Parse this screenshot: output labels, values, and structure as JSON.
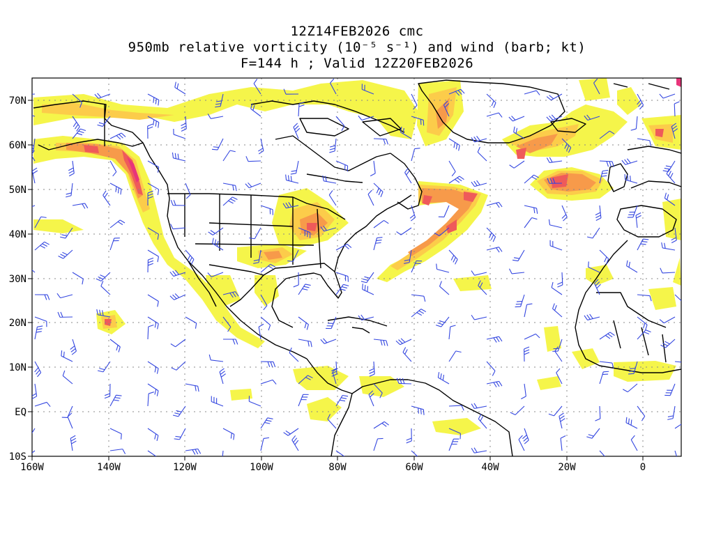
{
  "title": {
    "line1": "12Z14FEB2026 cmc",
    "line2": "950mb relative vorticity (10⁻⁵ s⁻¹) and wind (barb; kt)",
    "line3": "F=144 h ; Valid 12Z20FEB2026"
  },
  "axes": {
    "lat_labels": [
      "70N",
      "60N",
      "50N",
      "40N",
      "30N",
      "20N",
      "10N",
      "EQ",
      "10S"
    ],
    "lon_labels": [
      "160W",
      "140W",
      "120W",
      "100W",
      "80W",
      "60W",
      "40W",
      "20W",
      "0"
    ]
  },
  "map": {
    "lon_range": [
      -160,
      10
    ],
    "lat_range": [
      -10,
      75
    ],
    "grid": "dotted",
    "colors": {
      "light": "#f5f54a",
      "medium": "#fccc4a",
      "strong": "#f79a4a",
      "intense": "#ef5a5a",
      "extreme": "#e8347a",
      "coast": "#000000",
      "barb": "#3346e0"
    }
  }
}
